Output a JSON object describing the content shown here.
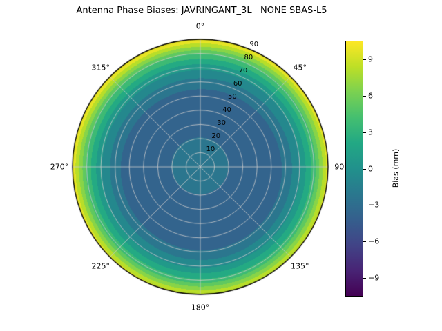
{
  "figure": {
    "background": "#ffffff"
  },
  "chart_data": {
    "type": "heatmap",
    "projection": "polar",
    "title": "Antenna Phase Biases: JAVRINGANT_3L   NONE SBAS-L5",
    "theta_zero_location": "top",
    "theta_direction": "clockwise",
    "theta_ticks_deg": [
      0,
      45,
      90,
      135,
      180,
      225,
      270,
      315
    ],
    "theta_tick_labels": [
      "0°",
      "45°",
      "90°",
      "135°",
      "180°",
      "225°",
      "270°",
      "315°"
    ],
    "r_ticks": [
      10,
      20,
      30,
      40,
      50,
      60,
      70,
      80,
      90
    ],
    "r_tick_labels": [
      "10",
      "20",
      "30",
      "40",
      "50",
      "60",
      "70",
      "80",
      "90"
    ],
    "r_label_angle_deg": 22.5,
    "r_max": 90,
    "grid_on": true,
    "grid_color": "#cccccc",
    "radial_profile": {
      "zenith_deg": [
        0,
        10,
        20,
        30,
        40,
        50,
        60,
        70,
        80,
        90
      ],
      "bias_mm": [
        -2.0,
        -2.5,
        -3.0,
        -3.5,
        -4.0,
        -4.0,
        -2.5,
        0.0,
        4.0,
        10.0
      ]
    },
    "azimuthal_cos_amplitude_mm": 0.8,
    "azimuthal_peak_deg": 340,
    "contour_level_step_mm": 1.5,
    "colorbar": {
      "label": "Bias (mm)",
      "ticks": [
        9,
        6,
        3,
        0,
        -3,
        -6,
        -9
      ],
      "vmin": -10.5,
      "vmax": 10.5,
      "colormap": "viridis",
      "stops": [
        "#440154",
        "#482475",
        "#414487",
        "#355f8d",
        "#2a788e",
        "#21918c",
        "#22a884",
        "#44bf70",
        "#7ad151",
        "#bddf26",
        "#fde725"
      ],
      "position": "right"
    }
  }
}
